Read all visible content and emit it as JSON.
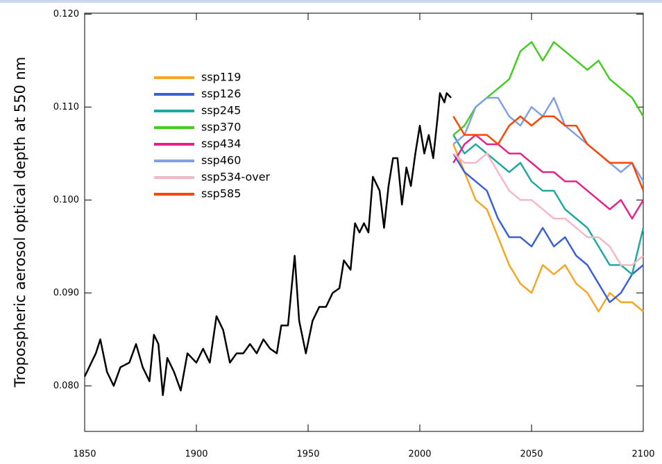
{
  "chart_data": {
    "type": "line",
    "y_label": "Tropospheric aerosol optical depth at 550 nm",
    "xlim": [
      1850,
      2100
    ],
    "xticks": [
      1850,
      1900,
      1950,
      2000,
      2050,
      2100
    ],
    "ylim": [
      0.0751,
      0.1201
    ],
    "yticks": [
      {
        "value": 0.08,
        "label": "0.080"
      },
      {
        "value": 0.09,
        "label": "0.090"
      },
      {
        "value": 0.1,
        "label": "0.100"
      },
      {
        "value": 0.11,
        "label": "0.110"
      },
      {
        "value": 0.12,
        "label": "0.120"
      }
    ],
    "series": [
      {
        "color": "#000000",
        "x": [
          1850,
          1855,
          1857,
          1860,
          1863,
          1866,
          1870,
          1873,
          1876,
          1879,
          1881,
          1883,
          1885,
          1887,
          1890,
          1893,
          1896,
          1900,
          1903,
          1906,
          1909,
          1912,
          1915,
          1918,
          1921,
          1924,
          1927,
          1930,
          1933,
          1936,
          1938,
          1941,
          1944,
          1946,
          1949,
          1952,
          1955,
          1958,
          1961,
          1964,
          1966,
          1969,
          1971,
          1973,
          1975,
          1977,
          1979,
          1982,
          1984,
          1986,
          1988,
          1990,
          1992,
          1994,
          1996,
          1998,
          2000,
          2002,
          2004,
          2006,
          2008,
          2009,
          2011,
          2012,
          2014
        ],
        "values": [
          0.081,
          0.0835,
          0.085,
          0.0815,
          0.08,
          0.082,
          0.0825,
          0.0845,
          0.082,
          0.0805,
          0.0855,
          0.0845,
          0.079,
          0.083,
          0.0815,
          0.0795,
          0.0835,
          0.0825,
          0.084,
          0.0825,
          0.0875,
          0.086,
          0.0825,
          0.0835,
          0.0835,
          0.0845,
          0.0835,
          0.085,
          0.084,
          0.0835,
          0.0865,
          0.0865,
          0.094,
          0.087,
          0.0835,
          0.087,
          0.0885,
          0.0885,
          0.09,
          0.0905,
          0.0935,
          0.0925,
          0.0975,
          0.0965,
          0.0975,
          0.0965,
          0.1025,
          0.101,
          0.097,
          0.1015,
          0.1045,
          0.1045,
          0.0995,
          0.1035,
          0.1015,
          0.105,
          0.108,
          0.105,
          0.107,
          0.1045,
          0.109,
          0.1115,
          0.1105,
          0.1115,
          0.111
        ]
      },
      {
        "name": "ssp119",
        "color": "#f5a623",
        "x": [
          2015,
          2020,
          2025,
          2030,
          2035,
          2040,
          2045,
          2050,
          2055,
          2060,
          2065,
          2070,
          2075,
          2080,
          2085,
          2090,
          2095,
          2100
        ],
        "values": [
          0.106,
          0.103,
          0.1,
          0.099,
          0.096,
          0.093,
          0.091,
          0.09,
          0.093,
          0.092,
          0.093,
          0.091,
          0.09,
          0.088,
          0.09,
          0.089,
          0.089,
          0.088
        ]
      },
      {
        "name": "ssp126",
        "color": "#3a5fd6",
        "x": [
          2015,
          2020,
          2025,
          2030,
          2035,
          2040,
          2045,
          2050,
          2055,
          2060,
          2065,
          2070,
          2075,
          2080,
          2085,
          2090,
          2095,
          2100
        ],
        "values": [
          0.105,
          0.103,
          0.102,
          0.101,
          0.098,
          0.096,
          0.096,
          0.095,
          0.097,
          0.095,
          0.096,
          0.094,
          0.093,
          0.091,
          0.089,
          0.09,
          0.092,
          0.093
        ]
      },
      {
        "name": "ssp245",
        "color": "#20a8a0",
        "x": [
          2015,
          2020,
          2025,
          2030,
          2035,
          2040,
          2045,
          2050,
          2055,
          2060,
          2065,
          2070,
          2075,
          2080,
          2085,
          2090,
          2095,
          2100
        ],
        "values": [
          0.107,
          0.105,
          0.106,
          0.105,
          0.104,
          0.103,
          0.104,
          0.102,
          0.101,
          0.101,
          0.099,
          0.098,
          0.097,
          0.095,
          0.093,
          0.093,
          0.092,
          0.097
        ]
      },
      {
        "name": "ssp370",
        "color": "#44cc22",
        "x": [
          2015,
          2020,
          2025,
          2030,
          2035,
          2040,
          2045,
          2050,
          2055,
          2060,
          2065,
          2070,
          2075,
          2080,
          2085,
          2090,
          2095,
          2100
        ],
        "values": [
          0.107,
          0.108,
          0.11,
          0.111,
          0.112,
          0.113,
          0.116,
          0.117,
          0.115,
          0.117,
          0.116,
          0.115,
          0.114,
          0.115,
          0.113,
          0.112,
          0.111,
          0.109
        ]
      },
      {
        "name": "ssp434",
        "color": "#e8208a",
        "x": [
          2015,
          2020,
          2025,
          2030,
          2035,
          2040,
          2045,
          2050,
          2055,
          2060,
          2065,
          2070,
          2075,
          2080,
          2085,
          2090,
          2095,
          2100
        ],
        "values": [
          0.104,
          0.106,
          0.107,
          0.106,
          0.106,
          0.105,
          0.105,
          0.104,
          0.103,
          0.103,
          0.102,
          0.102,
          0.101,
          0.1,
          0.099,
          0.1,
          0.098,
          0.1
        ]
      },
      {
        "name": "ssp460",
        "color": "#7fa0e8",
        "x": [
          2015,
          2020,
          2025,
          2030,
          2035,
          2040,
          2045,
          2050,
          2055,
          2060,
          2065,
          2070,
          2075,
          2080,
          2085,
          2090,
          2095,
          2100
        ],
        "values": [
          0.106,
          0.107,
          0.11,
          0.111,
          0.111,
          0.109,
          0.108,
          0.11,
          0.109,
          0.111,
          0.108,
          0.107,
          0.106,
          0.105,
          0.104,
          0.103,
          0.104,
          0.102
        ]
      },
      {
        "name": "ssp534-over",
        "color": "#f5b8c4",
        "x": [
          2015,
          2020,
          2025,
          2030,
          2035,
          2040,
          2045,
          2050,
          2055,
          2060,
          2065,
          2070,
          2075,
          2080,
          2085,
          2090,
          2095,
          2100
        ],
        "values": [
          0.105,
          0.104,
          0.104,
          0.105,
          0.103,
          0.101,
          0.1,
          0.1,
          0.099,
          0.098,
          0.098,
          0.097,
          0.096,
          0.096,
          0.095,
          0.093,
          0.093,
          0.094
        ]
      },
      {
        "name": "ssp585",
        "color": "#ff4500",
        "x": [
          2015,
          2020,
          2025,
          2030,
          2035,
          2040,
          2045,
          2050,
          2055,
          2060,
          2065,
          2070,
          2075,
          2080,
          2085,
          2090,
          2095,
          2100
        ],
        "values": [
          0.109,
          0.107,
          0.107,
          0.107,
          0.106,
          0.108,
          0.109,
          0.108,
          0.109,
          0.109,
          0.108,
          0.108,
          0.106,
          0.105,
          0.104,
          0.104,
          0.104,
          0.101
        ]
      }
    ]
  }
}
